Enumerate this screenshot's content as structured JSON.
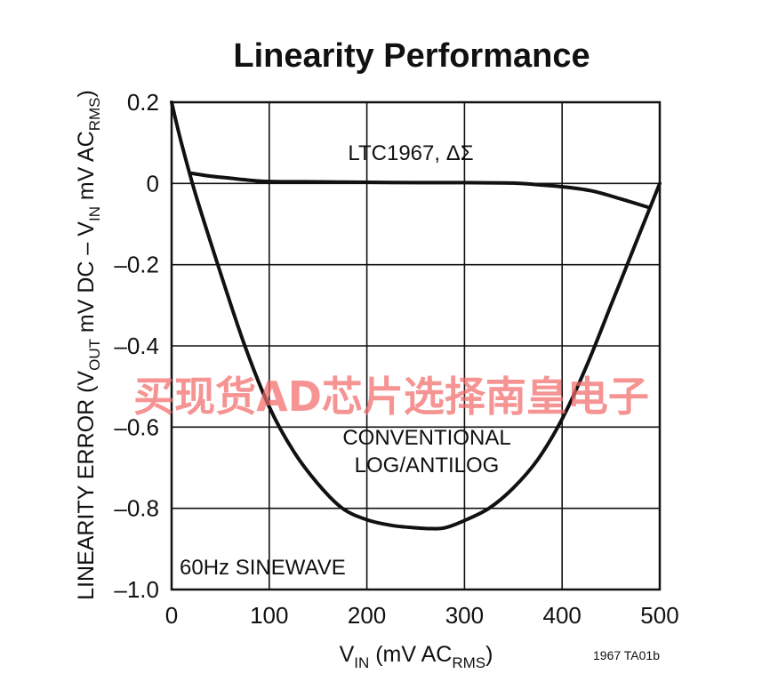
{
  "chart_data": {
    "type": "line",
    "title": "Linearity Performance",
    "xlabel": {
      "main": "V",
      "sub": "IN",
      "unit_pre": " (mV AC",
      "unit_sub": "RMS",
      "unit_post": ")"
    },
    "ylabel": {
      "a": "LINEARITY ERROR (V",
      "a_sub": "OUT",
      "b": " mV DC – V",
      "b_sub": "IN",
      "c": " mV AC",
      "c_sub": "RMS",
      "d": ")"
    },
    "xlim": [
      0,
      500
    ],
    "ylim": [
      -1.0,
      0.2
    ],
    "x_ticks": [
      0,
      100,
      200,
      300,
      400,
      500
    ],
    "x_tick_labels": [
      "0",
      "100",
      "200",
      "300",
      "400",
      "500"
    ],
    "y_ticks": [
      0.2,
      0,
      -0.2,
      -0.4,
      -0.6,
      -0.8,
      -1.0
    ],
    "y_tick_labels": [
      "0.2",
      "0",
      "–0.2",
      "–0.4",
      "–0.6",
      "–0.8",
      "–1.0"
    ],
    "grid": true,
    "series": [
      {
        "name": "LTC1967, ΔΣ",
        "x": [
          20,
          40,
          60,
          80,
          100,
          150,
          200,
          250,
          300,
          350,
          375,
          400,
          430,
          460,
          490
        ],
        "y": [
          0.025,
          0.018,
          0.013,
          0.008,
          0.005,
          0.004,
          0.003,
          0.002,
          0.002,
          0.001,
          -0.003,
          -0.008,
          -0.018,
          -0.038,
          -0.06
        ]
      },
      {
        "name": "CONVENTIONAL LOG/ANTILOG",
        "x": [
          0,
          10,
          25,
          50,
          75,
          100,
          125,
          150,
          175,
          200,
          225,
          250,
          265,
          280,
          300,
          325,
          350,
          375,
          400,
          425,
          450,
          475,
          490,
          500
        ],
        "y": [
          0.2,
          0.1,
          -0.03,
          -0.22,
          -0.4,
          -0.55,
          -0.66,
          -0.74,
          -0.8,
          -0.828,
          -0.842,
          -0.848,
          -0.85,
          -0.848,
          -0.83,
          -0.8,
          -0.75,
          -0.68,
          -0.58,
          -0.45,
          -0.3,
          -0.15,
          -0.06,
          0.0
        ]
      }
    ],
    "annotations": {
      "ltc": "LTC1967, ΔΣ",
      "conv_line1": "CONVENTIONAL",
      "conv_line2": "LOG/ANTILOG",
      "waveform": "60Hz SINEWAVE"
    },
    "figure_code": "1967 TA01b"
  },
  "watermark": {
    "text": "买现货AD芯片选择南皇电子",
    "color": "#f26a6a"
  }
}
